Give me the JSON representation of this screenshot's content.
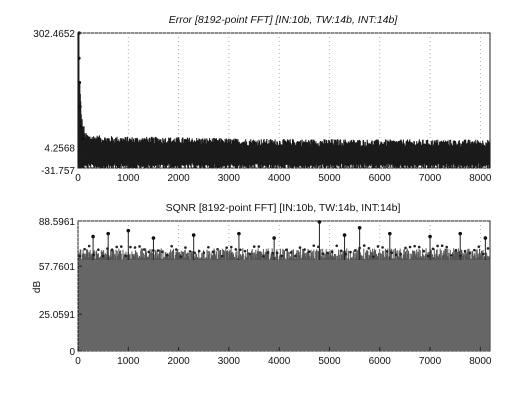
{
  "chart_data": [
    {
      "type": "line",
      "title": "Error [8192-point FFT] [IN:10b, TW:14b, INT:14b]",
      "xlabel": "",
      "ylabel": "",
      "xlim": [
        0,
        8192
      ],
      "ylim": [
        -31.757,
        302.4652
      ],
      "xticks": [
        0,
        1000,
        2000,
        3000,
        4000,
        5000,
        6000,
        7000,
        8000
      ],
      "yticks": [
        302.4652,
        4.2568,
        -31.757
      ],
      "ytick_labels": [
        "302.4652",
        "4.2568",
        "-31.757"
      ],
      "grid": true,
      "series": [
        {
          "points": [
            [
              0,
              240
            ],
            [
              5,
              302.4652
            ],
            [
              10,
              180
            ],
            [
              20,
              120
            ],
            [
              40,
              70
            ],
            [
              70,
              40
            ],
            [
              100,
              30
            ],
            [
              200,
              22
            ],
            [
              500,
              18
            ],
            [
              1000,
              16
            ],
            [
              2000,
              15
            ],
            [
              3000,
              12
            ],
            [
              4000,
              10
            ],
            [
              5000,
              10
            ],
            [
              6000,
              9
            ],
            [
              7000,
              9
            ],
            [
              8000,
              9
            ],
            [
              8192,
              9
            ]
          ],
          "band": {
            "upper": 20,
            "lower": -20
          }
        }
      ]
    },
    {
      "type": "bar",
      "title": "SQNR [8192-point FFT] [IN:10b, TW:14b, INT:14b]",
      "xlabel": "",
      "ylabel": "dB",
      "xlim": [
        0,
        8192
      ],
      "ylim": [
        0,
        88.5961
      ],
      "xticks": [
        0,
        1000,
        2000,
        3000,
        4000,
        5000,
        6000,
        7000,
        8000
      ],
      "yticks": [
        0,
        25.0591,
        57.7601,
        88.5961
      ],
      "ytick_labels": [
        "0",
        "25.0591",
        "57.7601",
        "88.5961"
      ],
      "grid": true,
      "series": [
        {
          "baseline": 62,
          "typical_max": 70,
          "peaks": [
            [
              300,
              78
            ],
            [
              600,
              80
            ],
            [
              1000,
              82
            ],
            [
              1500,
              77
            ],
            [
              2300,
              79
            ],
            [
              3200,
              80
            ],
            [
              3900,
              77
            ],
            [
              4800,
              88
            ],
            [
              5300,
              79
            ],
            [
              5600,
              84
            ],
            [
              6200,
              80
            ],
            [
              7000,
              78
            ],
            [
              7600,
              80
            ],
            [
              8100,
              77
            ]
          ]
        }
      ]
    }
  ]
}
